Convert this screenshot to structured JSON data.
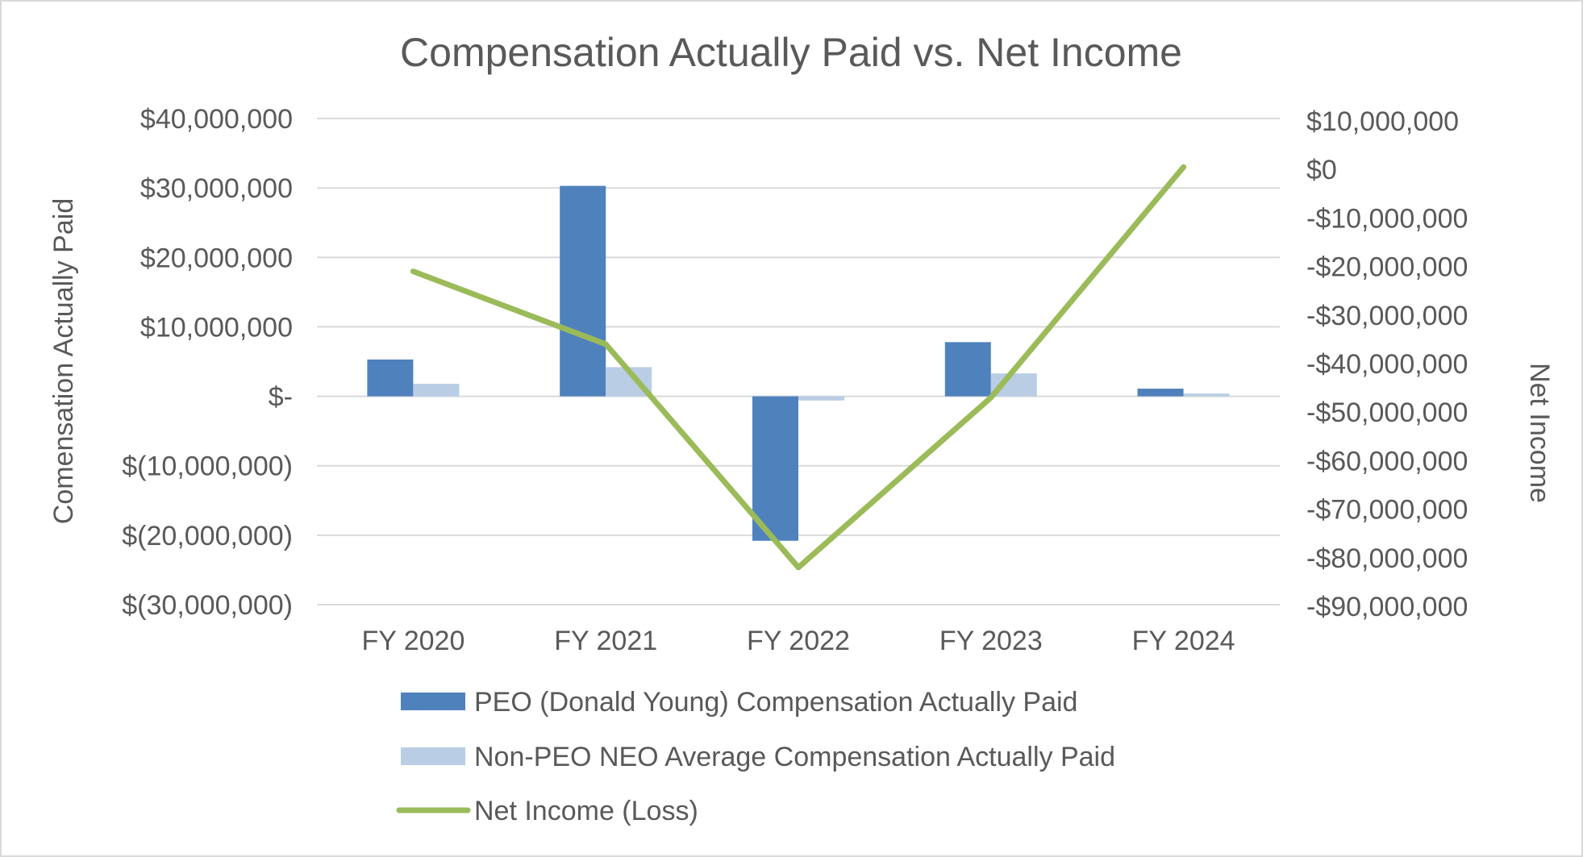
{
  "chart_data": {
    "type": "bar",
    "title": "Compensation Actually Paid vs. Net Income",
    "categories": [
      "FY 2020",
      "FY 2021",
      "FY 2022",
      "FY 2023",
      "FY 2024"
    ],
    "xlabel": "",
    "ylabel": "Comensation Actually Paid",
    "y2label": "Net Income",
    "ylim": [
      -30000000,
      40000000
    ],
    "y2lim": [
      -90000000,
      10000000
    ],
    "yticks": [
      40000000,
      30000000,
      20000000,
      10000000,
      0,
      -10000000,
      -20000000,
      -30000000
    ],
    "ytick_labels": [
      "$40,000,000",
      "$30,000,000",
      "$20,000,000",
      "$10,000,000",
      "$-",
      "$(10,000,000)",
      "$(20,000,000)",
      "$(30,000,000)"
    ],
    "y2ticks": [
      10000000,
      0,
      -10000000,
      -20000000,
      -30000000,
      -40000000,
      -50000000,
      -60000000,
      -70000000,
      -80000000,
      -90000000
    ],
    "y2tick_labels": [
      "$10,000,000",
      "$0",
      "-$10,000,000",
      "-$20,000,000",
      "-$30,000,000",
      "-$40,000,000",
      "-$50,000,000",
      "-$60,000,000",
      "-$70,000,000",
      "-$80,000,000",
      "-$90,000,000"
    ],
    "grid": true,
    "legend_position": "bottom",
    "series": [
      {
        "name": "PEO (Donald Young) Compensation Actually Paid",
        "type": "bar",
        "axis": "left",
        "color": "#4f81bd",
        "values": [
          5300000,
          30300000,
          -20800000,
          7800000,
          1100000
        ]
      },
      {
        "name": "Non-PEO NEO Average Compensation Actually Paid",
        "type": "bar",
        "axis": "left",
        "color": "#b9cde5",
        "values": [
          1800000,
          4200000,
          -600000,
          3300000,
          400000
        ]
      },
      {
        "name": "Net Income (Loss)",
        "type": "line",
        "axis": "right",
        "color": "#9bbb59",
        "values": [
          -21000000,
          -36000000,
          -82000000,
          -47000000,
          500000
        ]
      }
    ]
  }
}
